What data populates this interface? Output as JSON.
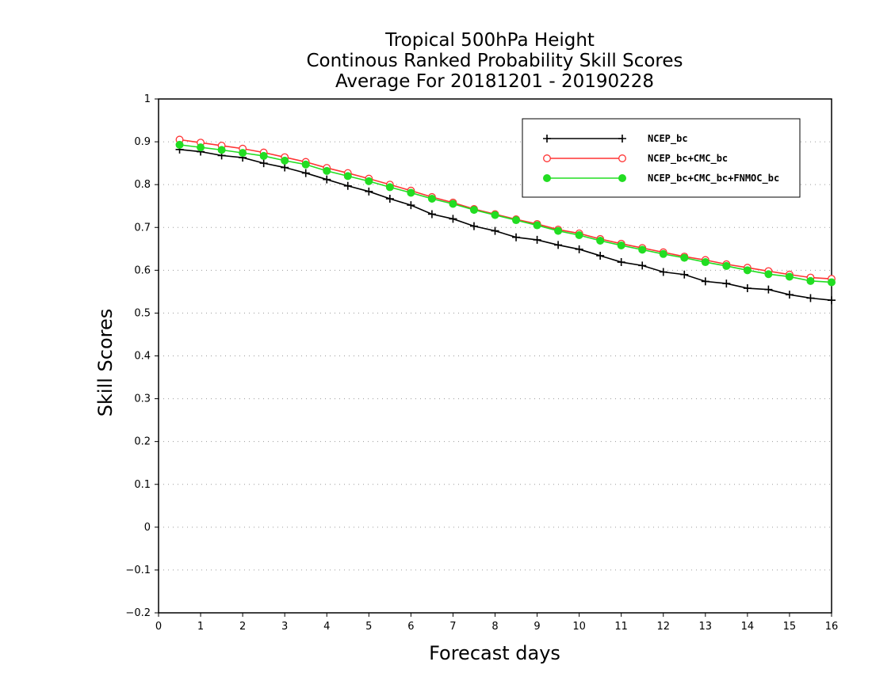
{
  "chart_data": {
    "type": "line",
    "title": [
      "Tropical 500hPa Height",
      "Continous Ranked Probability Skill Scores",
      "Average For 20181201 - 20190228"
    ],
    "xlabel": "Forecast days",
    "ylabel": "Skill Scores",
    "xlim": [
      0,
      16
    ],
    "ylim": [
      -0.2,
      1
    ],
    "x_ticks": [
      "0",
      "1",
      "2",
      "3",
      "4",
      "5",
      "6",
      "7",
      "8",
      "9",
      "10",
      "11",
      "12",
      "13",
      "14",
      "15",
      "16"
    ],
    "y_ticks": [
      "-0.2",
      "-0.1",
      "0",
      "0.1",
      "0.2",
      "0.3",
      "0.4",
      "0.5",
      "0.6",
      "0.7",
      "0.8",
      "0.9",
      "1"
    ],
    "grid": "horizontal dotted",
    "legend_position": "top-right",
    "x": [
      0.5,
      1,
      1.5,
      2,
      2.5,
      3,
      3.5,
      4,
      4.5,
      5,
      5.5,
      6,
      6.5,
      7,
      7.5,
      8,
      8.5,
      9,
      9.5,
      10,
      10.5,
      11,
      11.5,
      12,
      12.5,
      13,
      13.5,
      14,
      14.5,
      15,
      15.5,
      16
    ],
    "series": [
      {
        "name": "NCEP_bc",
        "color": "#000000",
        "marker": "plus",
        "values": [
          0.882,
          0.877,
          0.868,
          0.863,
          0.85,
          0.84,
          0.827,
          0.812,
          0.797,
          0.784,
          0.767,
          0.752,
          0.731,
          0.72,
          0.703,
          0.692,
          0.677,
          0.671,
          0.659,
          0.649,
          0.634,
          0.619,
          0.611,
          0.596,
          0.59,
          0.574,
          0.569,
          0.558,
          0.555,
          0.543,
          0.535,
          0.53
        ]
      },
      {
        "name": "NCEP_bc+CMC_bc",
        "color": "#ff3333",
        "marker": "open-circle",
        "values": [
          0.905,
          0.898,
          0.891,
          0.884,
          0.875,
          0.864,
          0.853,
          0.839,
          0.827,
          0.814,
          0.8,
          0.786,
          0.771,
          0.758,
          0.743,
          0.731,
          0.719,
          0.708,
          0.695,
          0.686,
          0.673,
          0.662,
          0.652,
          0.642,
          0.632,
          0.624,
          0.614,
          0.606,
          0.598,
          0.59,
          0.583,
          0.58
        ]
      },
      {
        "name": "NCEP_bc+CMC_bc+FNMOC_bc",
        "color": "#22dd22",
        "marker": "filled-circle",
        "values": [
          0.893,
          0.887,
          0.881,
          0.874,
          0.867,
          0.856,
          0.847,
          0.832,
          0.82,
          0.808,
          0.794,
          0.781,
          0.767,
          0.755,
          0.741,
          0.729,
          0.717,
          0.705,
          0.692,
          0.682,
          0.669,
          0.658,
          0.648,
          0.638,
          0.629,
          0.619,
          0.61,
          0.6,
          0.591,
          0.585,
          0.575,
          0.572
        ]
      }
    ]
  }
}
